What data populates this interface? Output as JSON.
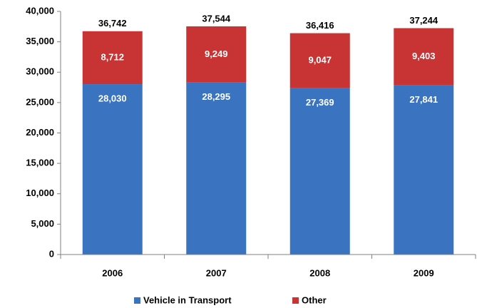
{
  "chart_data": {
    "type": "stacked-bar",
    "categories": [
      "2006",
      "2007",
      "2008",
      "2009"
    ],
    "series": [
      {
        "name": "Vehicle in Transport",
        "color": "#3a73c0",
        "values": [
          28030,
          28295,
          27369,
          27841
        ],
        "value_labels": [
          "28,030",
          "28,295",
          "27,369",
          "27,841"
        ]
      },
      {
        "name": "Other",
        "color": "#c83434",
        "values": [
          8712,
          9249,
          9047,
          9403
        ],
        "value_labels": [
          "8,712",
          "9,249",
          "9,047",
          "9,403"
        ]
      }
    ],
    "totals": [
      36742,
      37544,
      36416,
      37244
    ],
    "total_labels": [
      "36,742",
      "37,544",
      "36,416",
      "37,244"
    ],
    "ylim": [
      0,
      40000
    ],
    "yticks": [
      {
        "value": 0,
        "label": "0"
      },
      {
        "value": 5000,
        "label": "5,000"
      },
      {
        "value": 10000,
        "label": "10,000"
      },
      {
        "value": 15000,
        "label": "15,000"
      },
      {
        "value": 20000,
        "label": "20,000"
      },
      {
        "value": 25000,
        "label": "25,000"
      },
      {
        "value": 30000,
        "label": "30,000"
      },
      {
        "value": 35000,
        "label": "35,000"
      },
      {
        "value": 40000,
        "label": "40,000"
      }
    ],
    "legend": "bottom"
  }
}
